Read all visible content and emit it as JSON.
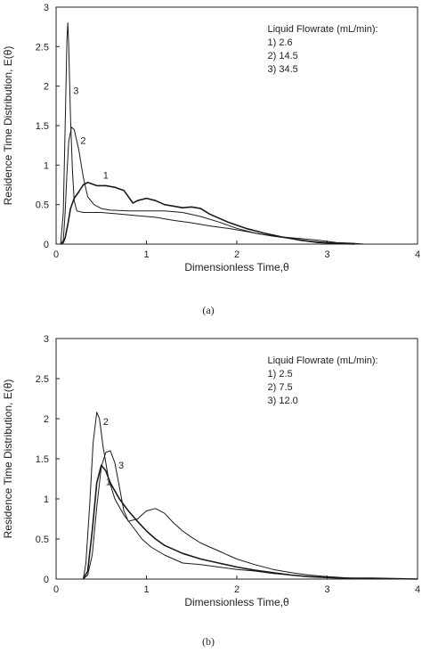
{
  "figure": {
    "caption_a": "(a)",
    "caption_b": "(b)"
  },
  "chart_data": [
    {
      "type": "line",
      "panel": "a",
      "xlabel": "Dimensionless Time,θ",
      "ylabel": "Residence Time Distribution, E(θ)",
      "xlim": [
        0,
        4
      ],
      "ylim": [
        0,
        3
      ],
      "x_ticks": [
        "0",
        "1",
        "2",
        "3",
        "4"
      ],
      "y_ticks": [
        "0",
        "0.5",
        "1",
        "1.5",
        "2",
        "2.5",
        "3"
      ],
      "legend_title": "Liquid Flowrate (mL/min):",
      "legend_items": [
        "1)   2.6",
        "2) 14.5",
        "3) 34.5"
      ],
      "series": [
        {
          "label": "1",
          "label_pos": [
            0.55,
            0.83
          ],
          "width": 1.6,
          "points": [
            [
              0.05,
              0
            ],
            [
              0.08,
              0.02
            ],
            [
              0.1,
              0.08
            ],
            [
              0.13,
              0.25
            ],
            [
              0.16,
              0.45
            ],
            [
              0.2,
              0.58
            ],
            [
              0.25,
              0.66
            ],
            [
              0.3,
              0.75
            ],
            [
              0.35,
              0.78
            ],
            [
              0.45,
              0.74
            ],
            [
              0.55,
              0.74
            ],
            [
              0.65,
              0.72
            ],
            [
              0.75,
              0.68
            ],
            [
              0.8,
              0.6
            ],
            [
              0.85,
              0.52
            ],
            [
              0.9,
              0.55
            ],
            [
              1.0,
              0.58
            ],
            [
              1.1,
              0.55
            ],
            [
              1.2,
              0.5
            ],
            [
              1.3,
              0.48
            ],
            [
              1.4,
              0.46
            ],
            [
              1.5,
              0.47
            ],
            [
              1.6,
              0.45
            ],
            [
              1.7,
              0.38
            ],
            [
              1.9,
              0.28
            ],
            [
              2.1,
              0.2
            ],
            [
              2.3,
              0.14
            ],
            [
              2.5,
              0.09
            ],
            [
              2.7,
              0.05
            ],
            [
              2.9,
              0.02
            ],
            [
              3.1,
              0.01
            ],
            [
              3.3,
              0
            ]
          ]
        },
        {
          "label": "2",
          "label_pos": [
            0.3,
            1.27
          ],
          "width": 1.0,
          "points": [
            [
              0.05,
              0
            ],
            [
              0.08,
              0.05
            ],
            [
              0.1,
              0.4
            ],
            [
              0.12,
              0.9
            ],
            [
              0.14,
              1.3
            ],
            [
              0.17,
              1.48
            ],
            [
              0.2,
              1.45
            ],
            [
              0.25,
              1.2
            ],
            [
              0.3,
              0.85
            ],
            [
              0.35,
              0.6
            ],
            [
              0.42,
              0.5
            ],
            [
              0.5,
              0.45
            ],
            [
              0.6,
              0.43
            ],
            [
              0.8,
              0.42
            ],
            [
              1.0,
              0.42
            ],
            [
              1.2,
              0.42
            ],
            [
              1.4,
              0.4
            ],
            [
              1.6,
              0.35
            ],
            [
              1.8,
              0.28
            ],
            [
              2.0,
              0.2
            ],
            [
              2.2,
              0.14
            ],
            [
              2.4,
              0.1
            ],
            [
              2.6,
              0.07
            ],
            [
              2.8,
              0.04
            ],
            [
              3.0,
              0.02
            ],
            [
              3.2,
              0.01
            ],
            [
              3.4,
              0
            ]
          ]
        },
        {
          "label": "3",
          "label_pos": [
            0.22,
            1.9
          ],
          "width": 1.0,
          "points": [
            [
              0.05,
              0
            ],
            [
              0.08,
              0.4
            ],
            [
              0.1,
              1.5
            ],
            [
              0.12,
              2.6
            ],
            [
              0.13,
              2.8
            ],
            [
              0.14,
              2.5
            ],
            [
              0.16,
              1.6
            ],
            [
              0.18,
              0.95
            ],
            [
              0.2,
              0.55
            ],
            [
              0.23,
              0.42
            ],
            [
              0.3,
              0.4
            ],
            [
              0.4,
              0.4
            ],
            [
              0.5,
              0.4
            ],
            [
              0.7,
              0.38
            ],
            [
              0.9,
              0.36
            ],
            [
              1.1,
              0.34
            ],
            [
              1.3,
              0.3
            ],
            [
              1.5,
              0.27
            ],
            [
              1.7,
              0.23
            ],
            [
              1.9,
              0.2
            ],
            [
              2.1,
              0.16
            ],
            [
              2.3,
              0.12
            ],
            [
              2.5,
              0.09
            ],
            [
              2.7,
              0.07
            ],
            [
              2.9,
              0.05
            ],
            [
              3.1,
              0.02
            ],
            [
              3.3,
              0.01
            ],
            [
              3.4,
              0
            ]
          ]
        }
      ]
    },
    {
      "type": "line",
      "panel": "b",
      "xlabel": "Dimensionless Time,θ",
      "ylabel": "Residence Time Distribution, E(θ)",
      "xlim": [
        0,
        4
      ],
      "ylim": [
        0,
        3
      ],
      "x_ticks": [
        "0",
        "1",
        "2",
        "3",
        "4"
      ],
      "y_ticks": [
        "0",
        "0.5",
        "1",
        "1.5",
        "2",
        "2.5",
        "3"
      ],
      "legend_title": "Liquid Flowrate (mL/min):",
      "legend_items": [
        "1)   2.5",
        "2)   7.5",
        "3) 12.0"
      ],
      "series": [
        {
          "label": "1",
          "label_pos": [
            0.58,
            1.17
          ],
          "width": 1.6,
          "points": [
            [
              0.3,
              0
            ],
            [
              0.35,
              0.1
            ],
            [
              0.4,
              0.6
            ],
            [
              0.45,
              1.2
            ],
            [
              0.5,
              1.42
            ],
            [
              0.55,
              1.35
            ],
            [
              0.6,
              1.2
            ],
            [
              0.7,
              1.0
            ],
            [
              0.8,
              0.85
            ],
            [
              0.9,
              0.72
            ],
            [
              1.0,
              0.6
            ],
            [
              1.1,
              0.5
            ],
            [
              1.2,
              0.42
            ],
            [
              1.4,
              0.32
            ],
            [
              1.6,
              0.25
            ],
            [
              1.8,
              0.2
            ],
            [
              2.0,
              0.15
            ],
            [
              2.2,
              0.11
            ],
            [
              2.4,
              0.08
            ],
            [
              2.6,
              0.05
            ],
            [
              2.8,
              0.03
            ],
            [
              3.0,
              0.02
            ],
            [
              3.2,
              0.01
            ],
            [
              3.5,
              0.01
            ],
            [
              4.0,
              0
            ]
          ]
        },
        {
          "label": "2",
          "label_pos": [
            0.55,
            1.92
          ],
          "width": 1.0,
          "points": [
            [
              0.3,
              0
            ],
            [
              0.33,
              0.2
            ],
            [
              0.37,
              0.9
            ],
            [
              0.41,
              1.7
            ],
            [
              0.45,
              2.08
            ],
            [
              0.48,
              2.0
            ],
            [
              0.52,
              1.65
            ],
            [
              0.58,
              1.25
            ],
            [
              0.65,
              1.0
            ],
            [
              0.75,
              0.8
            ],
            [
              0.85,
              0.65
            ],
            [
              0.95,
              0.5
            ],
            [
              1.05,
              0.4
            ],
            [
              1.2,
              0.3
            ],
            [
              1.4,
              0.2
            ],
            [
              1.6,
              0.18
            ],
            [
              1.8,
              0.15
            ],
            [
              2.0,
              0.12
            ],
            [
              2.2,
              0.1
            ],
            [
              2.4,
              0.07
            ],
            [
              2.6,
              0.05
            ],
            [
              2.8,
              0.03
            ],
            [
              3.0,
              0.02
            ],
            [
              3.3,
              0.01
            ],
            [
              3.6,
              0
            ]
          ]
        },
        {
          "label": "3",
          "label_pos": [
            0.72,
            1.38
          ],
          "width": 1.0,
          "points": [
            [
              0.3,
              0
            ],
            [
              0.35,
              0.05
            ],
            [
              0.4,
              0.3
            ],
            [
              0.45,
              0.9
            ],
            [
              0.5,
              1.4
            ],
            [
              0.55,
              1.58
            ],
            [
              0.6,
              1.6
            ],
            [
              0.65,
              1.45
            ],
            [
              0.7,
              1.15
            ],
            [
              0.75,
              0.85
            ],
            [
              0.8,
              0.72
            ],
            [
              0.9,
              0.75
            ],
            [
              1.0,
              0.85
            ],
            [
              1.1,
              0.88
            ],
            [
              1.2,
              0.82
            ],
            [
              1.3,
              0.7
            ],
            [
              1.4,
              0.6
            ],
            [
              1.5,
              0.52
            ],
            [
              1.6,
              0.45
            ],
            [
              1.8,
              0.35
            ],
            [
              2.0,
              0.25
            ],
            [
              2.2,
              0.18
            ],
            [
              2.4,
              0.12
            ],
            [
              2.6,
              0.08
            ],
            [
              2.8,
              0.05
            ],
            [
              3.0,
              0.03
            ],
            [
              3.3,
              0.01
            ],
            [
              3.6,
              0
            ]
          ]
        }
      ]
    }
  ]
}
